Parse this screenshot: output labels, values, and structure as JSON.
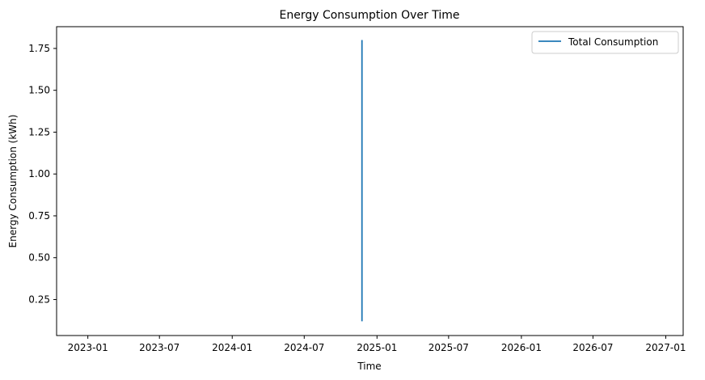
{
  "chart_data": {
    "type": "line",
    "title": "Energy Consumption Over Time",
    "xlabel": "Time",
    "ylabel": "Energy Consumption (kWh)",
    "x_axis_type": "date",
    "xlim": [
      "2022-10-14",
      "2027-02-14"
    ],
    "ylim": [
      0.035,
      1.88
    ],
    "x_ticks": [
      "2023-01",
      "2023-07",
      "2024-01",
      "2024-07",
      "2025-01",
      "2025-07",
      "2026-01",
      "2026-07",
      "2027-01"
    ],
    "y_ticks": [
      0.25,
      0.5,
      0.75,
      1.0,
      1.25,
      1.5,
      1.75
    ],
    "y_tick_labels": [
      "0.25",
      "0.50",
      "0.75",
      "1.00",
      "1.25",
      "1.50",
      "1.75"
    ],
    "grid": false,
    "legend_position": "top-right",
    "series": [
      {
        "name": "Total Consumption",
        "color": "#1f77b4",
        "x": [
          "2024-11-24",
          "2024-11-24"
        ],
        "y": [
          0.12,
          1.8
        ]
      }
    ]
  }
}
